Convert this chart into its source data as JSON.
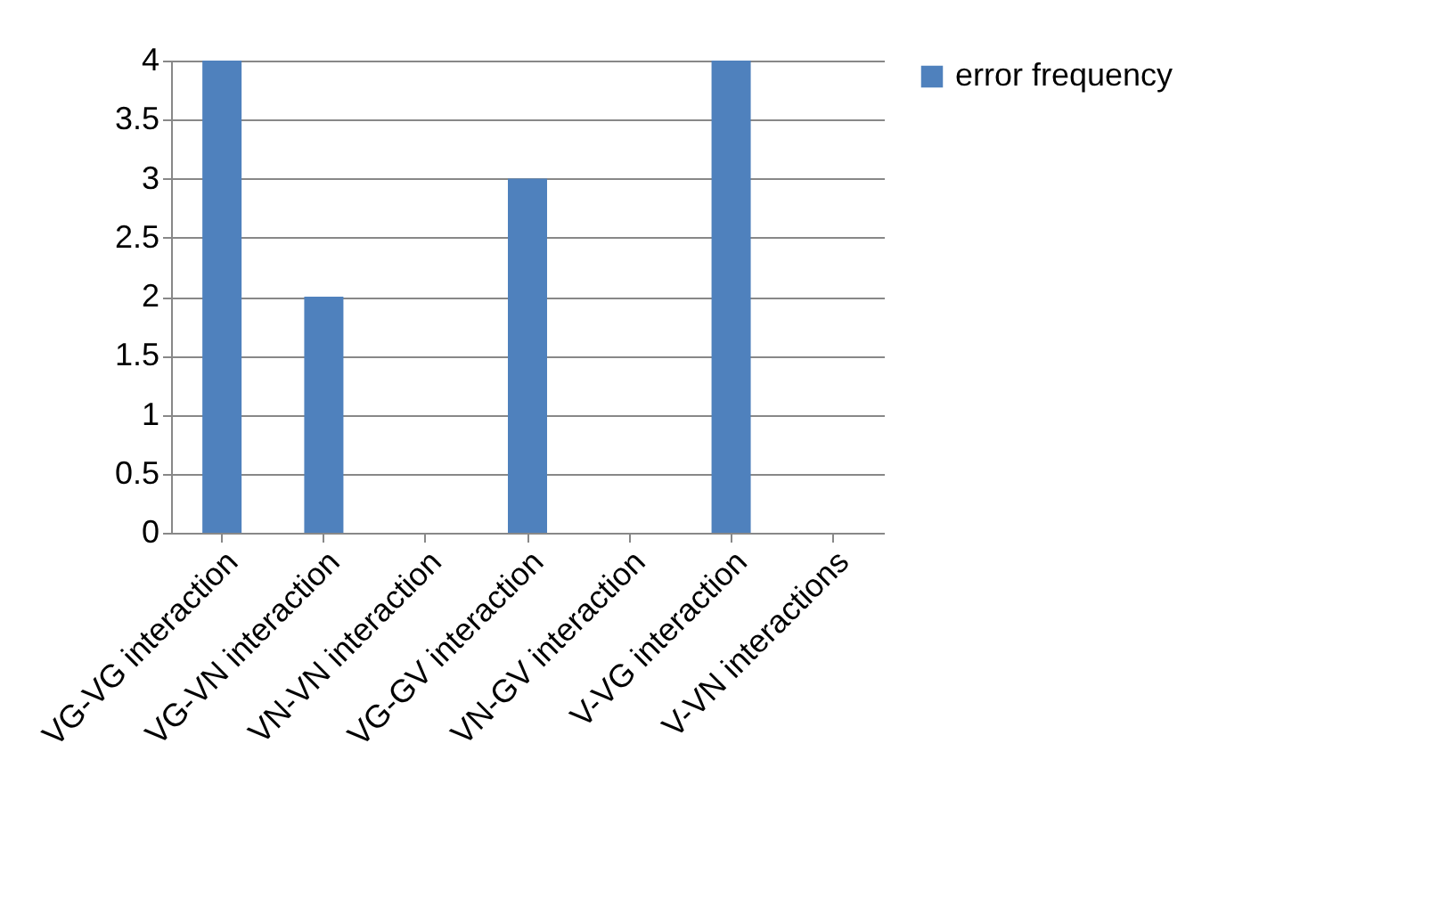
{
  "chart_data": {
    "type": "bar",
    "categories": [
      "VG-VG interaction",
      "VG-VN interaction",
      "VN-VN interaction",
      "VG-GV interaction",
      "VN-GV interaction",
      "V-VG interaction",
      "V-VN interactions"
    ],
    "series": [
      {
        "name": "error frequency",
        "color": "#4f81bd",
        "values": [
          4,
          2,
          0,
          3,
          0,
          4,
          0
        ]
      }
    ],
    "ylim": [
      0,
      4
    ],
    "yticks": [
      0,
      0.5,
      1,
      1.5,
      2,
      2.5,
      3,
      3.5,
      4
    ],
    "grid": "y",
    "legend": "right"
  }
}
